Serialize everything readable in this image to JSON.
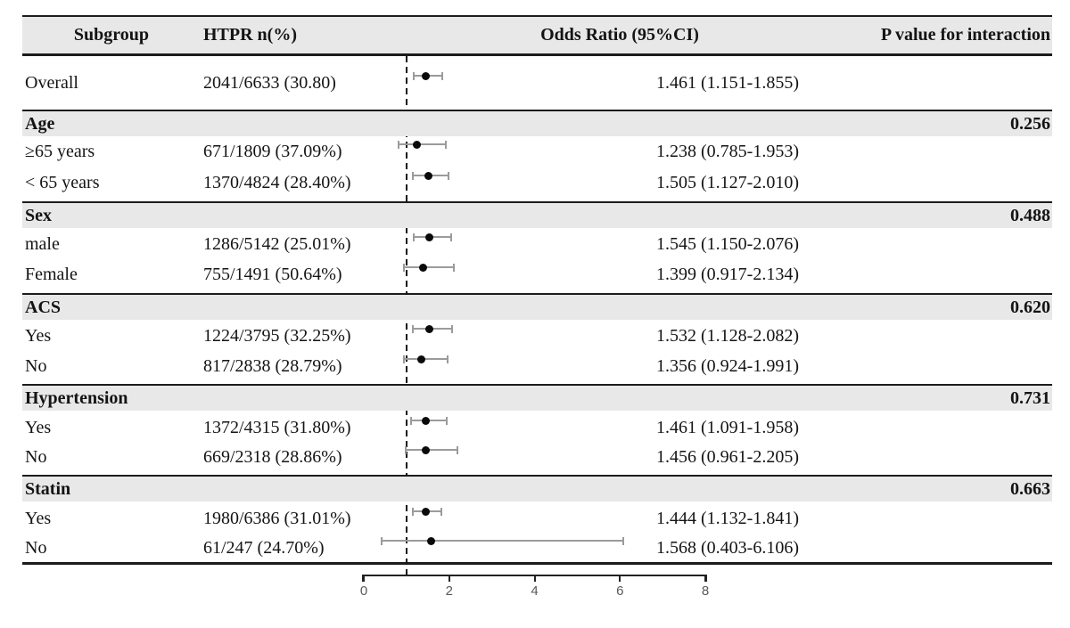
{
  "colors": {
    "section_band": "#e8e8e8",
    "rule": "#1c1c1c",
    "ci_bar": "#9b9b9b",
    "point_estimate": "#0a0a0a",
    "axis_label": "#595959"
  },
  "chart_data": {
    "type": "forest",
    "title": "",
    "xlabel": "",
    "columns": [
      "Subgroup",
      "HTPR n(%)",
      "Odds Ratio (95%CI)",
      "P value for interaction"
    ],
    "xlim": [
      0,
      8
    ],
    "x_ticks": [
      0,
      2,
      4,
      6,
      8
    ],
    "reference_line": 1,
    "rows": [
      {
        "kind": "data",
        "label": "Overall",
        "htpr": "2041/6633 (30.80)",
        "or_ci": "1.461 (1.151-1.855)",
        "or": 1.461,
        "lo": 1.151,
        "hi": 1.855
      },
      {
        "kind": "section",
        "label": "Age",
        "p": "0.256"
      },
      {
        "kind": "data",
        "label": "≥65 years",
        "htpr": "671/1809 (37.09%)",
        "or_ci": "1.238 (0.785-1.953)",
        "or": 1.238,
        "lo": 0.785,
        "hi": 1.953
      },
      {
        "kind": "data",
        "label": "< 65 years",
        "htpr": "1370/4824 (28.40%)",
        "or_ci": "1.505 (1.127-2.010)",
        "or": 1.505,
        "lo": 1.127,
        "hi": 2.01
      },
      {
        "kind": "section",
        "label": "Sex",
        "p": "0.488"
      },
      {
        "kind": "data",
        "label": "male",
        "htpr": "1286/5142 (25.01%)",
        "or_ci": "1.545 (1.150-2.076)",
        "or": 1.545,
        "lo": 1.15,
        "hi": 2.076
      },
      {
        "kind": "data",
        "label": "Female",
        "htpr": "755/1491 (50.64%)",
        "or_ci": "1.399 (0.917-2.134)",
        "or": 1.399,
        "lo": 0.917,
        "hi": 2.134
      },
      {
        "kind": "section",
        "label": "ACS",
        "p": "0.620"
      },
      {
        "kind": "data",
        "label": "Yes",
        "htpr": "1224/3795 (32.25%)",
        "or_ci": "1.532 (1.128-2.082)",
        "or": 1.532,
        "lo": 1.128,
        "hi": 2.082
      },
      {
        "kind": "data",
        "label": "No",
        "htpr": "817/2838 (28.79%)",
        "or_ci": "1.356 (0.924-1.991)",
        "or": 1.356,
        "lo": 0.924,
        "hi": 1.991
      },
      {
        "kind": "section",
        "label": "Hypertension",
        "p": "0.731"
      },
      {
        "kind": "data",
        "label": "Yes",
        "htpr": "1372/4315 (31.80%)",
        "or_ci": "1.461 (1.091-1.958)",
        "or": 1.461,
        "lo": 1.091,
        "hi": 1.958
      },
      {
        "kind": "data",
        "label": "No",
        "htpr": "669/2318 (28.86%)",
        "or_ci": "1.456 (0.961-2.205)",
        "or": 1.456,
        "lo": 0.961,
        "hi": 2.205
      },
      {
        "kind": "section",
        "label": "Statin",
        "p": "0.663"
      },
      {
        "kind": "data",
        "label": "Yes",
        "htpr": "1980/6386 (31.01%)",
        "or_ci": "1.444 (1.132-1.841)",
        "or": 1.444,
        "lo": 1.132,
        "hi": 1.841
      },
      {
        "kind": "data",
        "label": "No",
        "htpr": "61/247 (24.70%)",
        "or_ci": "1.568 (0.403-6.106)",
        "or": 1.568,
        "lo": 0.403,
        "hi": 6.106
      }
    ]
  }
}
